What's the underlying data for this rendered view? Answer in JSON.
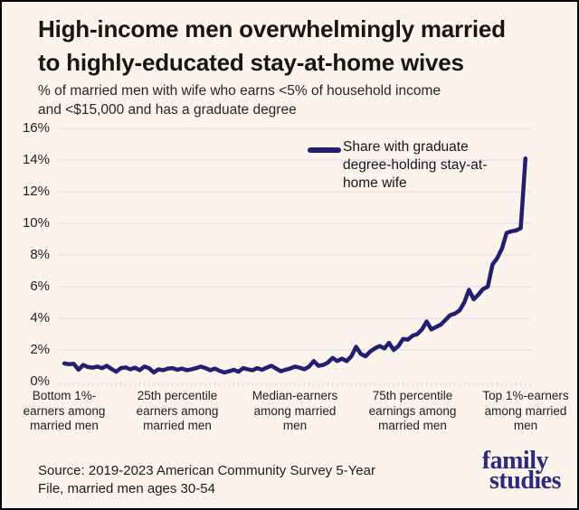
{
  "card": {
    "background": "#FCF3EC",
    "border_color": "#000000"
  },
  "header": {
    "title_lines": [
      "High-income men overwhelmingly married",
      "to highly-educated stay-at-home wives"
    ],
    "subtitle_lines": [
      "% of married men with wife who earns <5% of household income",
      "and <$15,000 and has a graduate degree"
    ]
  },
  "chart_data": {
    "type": "line",
    "title": "High-income men overwhelmingly married to highly-educated stay-at-home wives",
    "subtitle": "% of married men with wife who earns <5% of household income and <$15,000 and has a graduate degree",
    "legend": {
      "label": "Share with graduate degree-holding stay-at-home wife",
      "position": "top-right-inside"
    },
    "line_color": "#231F70",
    "grid_color": "#E1E0EC",
    "tick_color": "#D9D5D0",
    "grid": true,
    "x_unit": "earnings percentile among married men",
    "x": [
      1,
      2,
      3,
      4,
      5,
      6,
      7,
      8,
      9,
      10,
      11,
      12,
      13,
      14,
      15,
      16,
      17,
      18,
      19,
      20,
      21,
      22,
      23,
      24,
      25,
      26,
      27,
      28,
      29,
      30,
      31,
      32,
      33,
      34,
      35,
      36,
      37,
      38,
      39,
      40,
      41,
      42,
      43,
      44,
      45,
      46,
      47,
      48,
      49,
      50,
      51,
      52,
      53,
      54,
      55,
      56,
      57,
      58,
      59,
      60,
      61,
      62,
      63,
      64,
      65,
      66,
      67,
      68,
      69,
      70,
      71,
      72,
      73,
      74,
      75,
      76,
      77,
      78,
      79,
      80,
      81,
      82,
      83,
      84,
      85,
      86,
      87,
      88,
      89,
      90,
      91,
      92,
      93,
      94,
      95,
      96,
      97,
      98,
      99
    ],
    "series": [
      {
        "name": "Share with graduate degree-holding stay-at-home wife",
        "values": [
          1.15,
          1.1,
          1.12,
          0.75,
          1.05,
          0.92,
          0.88,
          0.95,
          0.85,
          1.0,
          0.8,
          0.62,
          0.85,
          0.9,
          0.78,
          0.88,
          0.72,
          0.95,
          0.85,
          0.58,
          0.78,
          0.72,
          0.82,
          0.85,
          0.75,
          0.82,
          0.72,
          0.78,
          0.85,
          0.95,
          0.85,
          0.72,
          0.82,
          0.68,
          0.58,
          0.65,
          0.75,
          0.62,
          0.85,
          0.78,
          0.72,
          0.85,
          0.75,
          0.88,
          1.0,
          0.82,
          0.65,
          0.75,
          0.82,
          0.95,
          0.88,
          0.78,
          0.95,
          1.3,
          1.0,
          1.05,
          1.2,
          1.5,
          1.3,
          1.45,
          1.3,
          1.6,
          2.2,
          1.75,
          1.6,
          1.9,
          2.1,
          2.25,
          2.1,
          2.45,
          2.0,
          2.25,
          2.7,
          2.65,
          2.9,
          3.0,
          3.3,
          3.8,
          3.3,
          3.45,
          3.6,
          3.9,
          4.2,
          4.3,
          4.5,
          5.0,
          5.8,
          5.2,
          5.5,
          5.85,
          6.0,
          7.4,
          7.8,
          8.4,
          9.4,
          9.5,
          9.55,
          9.7,
          14.1
        ]
      }
    ],
    "x_axis": {
      "range": [
        0,
        100
      ],
      "tick_labels": [
        {
          "lines": [
            "Bottom 1%-",
            "earners among",
            "married men"
          ]
        },
        {
          "lines": [
            "25th percentile",
            "earners among",
            "married men"
          ]
        },
        {
          "lines": [
            "Median-earners",
            "among married",
            "men"
          ]
        },
        {
          "lines": [
            "75th percentile",
            "earnings among",
            "married men"
          ]
        },
        {
          "lines": [
            "Top 1%-earners",
            "among married",
            "men"
          ]
        }
      ]
    },
    "y_axis": {
      "range": [
        0,
        16
      ],
      "unit": "%",
      "tick_step": 2,
      "tick_labels": [
        "0%",
        "2%",
        "4%",
        "6%",
        "8%",
        "10%",
        "12%",
        "14%",
        "16%"
      ]
    }
  },
  "footer": {
    "source_lines": [
      "Source: 2019-2023 American Community Survey 5-Year",
      "File, married men ages 30-54"
    ],
    "logo": {
      "line1": "family",
      "line2": "studies",
      "color": "#2B2A7C"
    }
  }
}
